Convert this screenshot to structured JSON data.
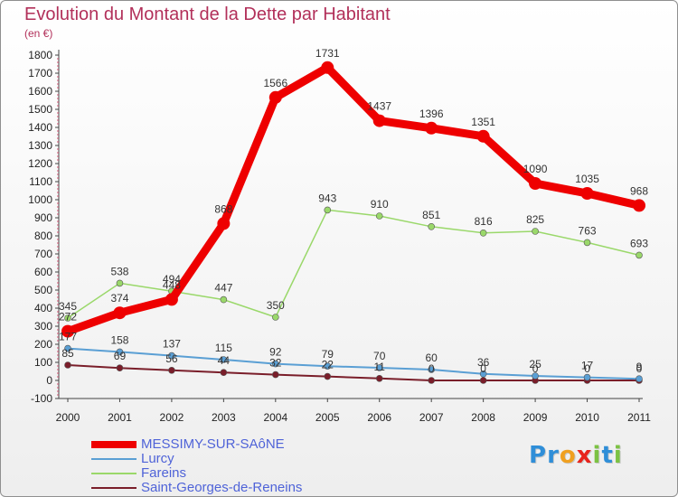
{
  "chart_data": {
    "type": "line",
    "title": "Evolution du Montant de la Dette par Habitant",
    "subtitle": "(en €)",
    "categories": [
      "2000",
      "2001",
      "2002",
      "2003",
      "2004",
      "2005",
      "2006",
      "2007",
      "2008",
      "2009",
      "2010",
      "2011"
    ],
    "ylim": [
      -100,
      1800
    ],
    "yticks": [
      -100,
      0,
      100,
      200,
      300,
      400,
      500,
      600,
      700,
      800,
      900,
      1000,
      1100,
      1200,
      1300,
      1400,
      1500,
      1600,
      1700,
      1800
    ],
    "grid": false,
    "legend_position": "bottom-left",
    "series": [
      {
        "name": "MESSIMY-SUR-SAôNE",
        "color": "#ee0000",
        "values": [
          272,
          374,
          448,
          868,
          1566,
          1731,
          1437,
          1396,
          1351,
          1090,
          1035,
          968
        ]
      },
      {
        "name": "Lurcy",
        "color": "#5a9fd4",
        "values": [
          177,
          158,
          137,
          115,
          92,
          79,
          70,
          60,
          36,
          25,
          17,
          9
        ]
      },
      {
        "name": "Fareins",
        "color": "#9ad86a",
        "values": [
          345,
          538,
          494,
          447,
          350,
          943,
          910,
          851,
          816,
          825,
          763,
          693
        ]
      },
      {
        "name": "Saint-Georges-de-Reneins",
        "color": "#7a1e2a",
        "values": [
          85,
          69,
          56,
          44,
          32,
          22,
          11,
          0,
          0,
          0,
          0,
          0
        ]
      }
    ]
  },
  "logo": {
    "letters": [
      "P",
      "r",
      "o",
      "x",
      "i",
      "t",
      "i"
    ],
    "colors": [
      "#2f8ed8",
      "#2f8ed8",
      "#f0a020",
      "#e8241c",
      "#7cc243",
      "#2f8ed8",
      "#7cc243"
    ]
  }
}
